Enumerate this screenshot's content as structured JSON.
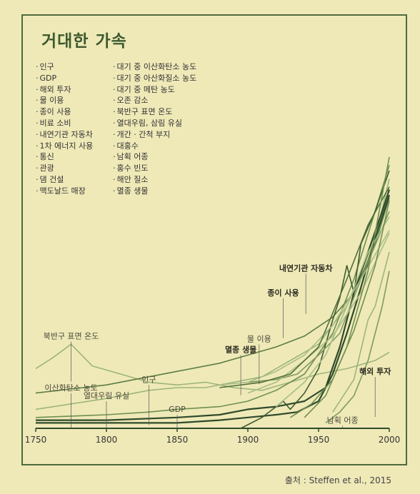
{
  "page": {
    "title": "거대한 가속",
    "source": "출처 : Steffen et al., 2015"
  },
  "legend": {
    "left": [
      "인구",
      "GDP",
      "해외 투자",
      "물 이용",
      "종이 사용",
      "비료 소비",
      "내연기관 자동차",
      "1차 에너지 사용",
      "통신",
      "관광",
      "댐 건설",
      "맥도날드 매장"
    ],
    "right": [
      "대기 중 이산화탄소 농도",
      "대기 중 아산화질소 농도",
      "대기 중 메탄 농도",
      "오존 감소",
      "북반구 표면 온도",
      "열대우림, 삼림 유실",
      "개간 · 간척 부지",
      "대홍수",
      "남획 어종",
      "홍수 빈도",
      "해안 질소",
      "멸종 생물"
    ]
  },
  "colors": {
    "background": "#efe9b8",
    "frame": "#4d6b3a",
    "title": "#3d5a2f",
    "dark_series": "#2f4a2a",
    "mid_series": "#5e7d45",
    "light_series": "#9db57a"
  },
  "chart_data": {
    "type": "line",
    "title": "",
    "xlabel": "",
    "ylabel": "",
    "xlim": [
      1750,
      2000
    ],
    "x_ticks": [
      1750,
      1800,
      1850,
      1900,
      1950,
      2000
    ],
    "ylim": [
      0,
      100
    ],
    "grid": false,
    "annotations": [
      {
        "label": "북반구 표면 온도",
        "bold": false,
        "x": 1775,
        "y": 33
      },
      {
        "label": "인구",
        "bold": false,
        "x": 1830,
        "y": 17
      },
      {
        "label": "이산화탄소 농도",
        "bold": false,
        "x": 1775,
        "y": 14
      },
      {
        "label": "열대우림 유실",
        "bold": false,
        "x": 1800,
        "y": 11
      },
      {
        "label": "GDP",
        "bold": false,
        "x": 1850,
        "y": 6
      },
      {
        "label": "멸종 생물",
        "bold": true,
        "x": 1895,
        "y": 28
      },
      {
        "label": "물 이용",
        "bold": false,
        "x": 1908,
        "y": 32
      },
      {
        "label": "종이 사용",
        "bold": true,
        "x": 1925,
        "y": 49
      },
      {
        "label": "내연기관 자동차",
        "bold": true,
        "x": 1941,
        "y": 58
      },
      {
        "label": "해외 투자",
        "bold": true,
        "x": 1990,
        "y": 20
      },
      {
        "label": "남획 어종",
        "bold": false,
        "x": 1967,
        "y": 2
      }
    ],
    "series": [
      {
        "color": "#9db57a",
        "values": [
          [
            1750,
            22
          ],
          [
            1762,
            26
          ],
          [
            1775,
            31
          ],
          [
            1790,
            23
          ],
          [
            1810,
            20
          ],
          [
            1830,
            17
          ],
          [
            1850,
            16
          ],
          [
            1870,
            17
          ],
          [
            1890,
            15
          ],
          [
            1910,
            14
          ],
          [
            1930,
            17
          ],
          [
            1950,
            20
          ],
          [
            1970,
            22
          ],
          [
            1990,
            25
          ],
          [
            2000,
            28
          ]
        ]
      },
      {
        "color": "#5e7d45",
        "values": [
          [
            1750,
            13
          ],
          [
            1800,
            16
          ],
          [
            1850,
            21
          ],
          [
            1880,
            24
          ],
          [
            1900,
            27
          ],
          [
            1920,
            30
          ],
          [
            1940,
            34
          ],
          [
            1960,
            41
          ],
          [
            1975,
            50
          ],
          [
            1990,
            68
          ],
          [
            2000,
            85
          ]
        ]
      },
      {
        "color": "#9db57a",
        "values": [
          [
            1750,
            7
          ],
          [
            1800,
            11
          ],
          [
            1830,
            14
          ],
          [
            1850,
            15
          ],
          [
            1870,
            15
          ],
          [
            1890,
            17
          ],
          [
            1910,
            19
          ],
          [
            1930,
            25
          ],
          [
            1950,
            31
          ],
          [
            1970,
            45
          ],
          [
            1990,
            70
          ],
          [
            2000,
            92
          ]
        ]
      },
      {
        "color": "#6f8f52",
        "values": [
          [
            1750,
            4
          ],
          [
            1800,
            5
          ],
          [
            1830,
            6
          ],
          [
            1850,
            7
          ],
          [
            1880,
            8
          ],
          [
            1900,
            10
          ],
          [
            1920,
            14
          ],
          [
            1940,
            20
          ],
          [
            1960,
            35
          ],
          [
            1975,
            55
          ],
          [
            1990,
            80
          ],
          [
            2000,
            97
          ]
        ]
      },
      {
        "color": "#2f4a2a",
        "values": [
          [
            1750,
            3
          ],
          [
            1800,
            3
          ],
          [
            1850,
            4
          ],
          [
            1880,
            5
          ],
          [
            1900,
            7
          ],
          [
            1920,
            8
          ],
          [
            1940,
            10
          ],
          [
            1955,
            15
          ],
          [
            1965,
            30
          ],
          [
            1975,
            50
          ],
          [
            1985,
            65
          ],
          [
            1995,
            80
          ],
          [
            2000,
            88
          ]
        ]
      },
      {
        "color": "#2f4a2a",
        "values": [
          [
            1750,
            2
          ],
          [
            1800,
            2
          ],
          [
            1850,
            2
          ],
          [
            1880,
            3
          ],
          [
            1900,
            4
          ],
          [
            1920,
            5
          ],
          [
            1935,
            6
          ],
          [
            1950,
            10
          ],
          [
            1960,
            20
          ],
          [
            1970,
            35
          ],
          [
            1980,
            52
          ],
          [
            1990,
            70
          ],
          [
            2000,
            86
          ]
        ]
      },
      {
        "color": "#3d5a2f",
        "values": [
          [
            1895,
            0
          ],
          [
            1910,
            4
          ],
          [
            1920,
            8
          ],
          [
            1925,
            10
          ],
          [
            1930,
            7
          ],
          [
            1940,
            13
          ],
          [
            1950,
            22
          ],
          [
            1960,
            40
          ],
          [
            1965,
            48
          ],
          [
            1970,
            60
          ],
          [
            1975,
            50
          ],
          [
            1980,
            68
          ],
          [
            1990,
            80
          ],
          [
            2000,
            95
          ]
        ]
      },
      {
        "color": "#7f9a63",
        "values": [
          [
            1900,
            17
          ],
          [
            1920,
            18
          ],
          [
            1935,
            20
          ],
          [
            1950,
            27
          ],
          [
            1965,
            35
          ],
          [
            1980,
            55
          ],
          [
            2000,
            80
          ]
        ]
      },
      {
        "color": "#a8bd88",
        "values": [
          [
            1900,
            13
          ],
          [
            1920,
            17
          ],
          [
            1940,
            25
          ],
          [
            1960,
            34
          ],
          [
            1980,
            50
          ],
          [
            2000,
            72
          ]
        ]
      },
      {
        "color": "#a8bd88",
        "values": [
          [
            1920,
            8
          ],
          [
            1940,
            17
          ],
          [
            1955,
            27
          ],
          [
            1970,
            45
          ],
          [
            1985,
            65
          ],
          [
            2000,
            78
          ]
        ]
      },
      {
        "color": "#a8bd88",
        "values": [
          [
            1880,
            16
          ],
          [
            1900,
            17
          ],
          [
            1920,
            21
          ],
          [
            1940,
            27
          ],
          [
            1960,
            38
          ],
          [
            1980,
            55
          ],
          [
            2000,
            73
          ]
        ]
      },
      {
        "color": "#7f9a63",
        "values": [
          [
            1955,
            2
          ],
          [
            1965,
            6
          ],
          [
            1975,
            12
          ],
          [
            1985,
            25
          ],
          [
            1995,
            45
          ],
          [
            2000,
            58
          ]
        ]
      },
      {
        "color": "#6f8f52",
        "values": [
          [
            1930,
            4
          ],
          [
            1945,
            9
          ],
          [
            1960,
            18
          ],
          [
            1975,
            36
          ],
          [
            1990,
            60
          ],
          [
            2000,
            84
          ]
        ]
      },
      {
        "color": "#4f6e3a",
        "values": [
          [
            1880,
            15
          ],
          [
            1910,
            17
          ],
          [
            1930,
            20
          ],
          [
            1950,
            30
          ],
          [
            1970,
            55
          ],
          [
            1985,
            75
          ],
          [
            2000,
            89
          ]
        ]
      },
      {
        "color": "#6f8f52",
        "values": [
          [
            1940,
            4
          ],
          [
            1955,
            12
          ],
          [
            1970,
            30
          ],
          [
            1985,
            58
          ],
          [
            2000,
            100
          ]
        ]
      },
      {
        "color": "#9db57a",
        "values": [
          [
            1960,
            6
          ],
          [
            1975,
            18
          ],
          [
            1985,
            40
          ],
          [
            1990,
            45
          ],
          [
            1995,
            55
          ],
          [
            2000,
            65
          ]
        ]
      }
    ]
  }
}
